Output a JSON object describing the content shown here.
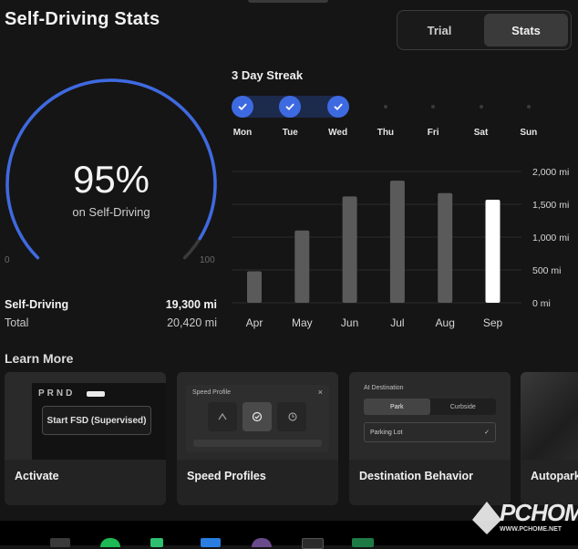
{
  "header": {
    "title": "Self-Driving Stats"
  },
  "tabs": [
    {
      "label": "Trial",
      "active": false
    },
    {
      "label": "Stats",
      "active": true
    }
  ],
  "gauge": {
    "percent_label": "95%",
    "value_percent": 95,
    "subtitle": "on Self-Driving",
    "min_label": "0",
    "max_label": "100",
    "arc_color": "#3e6ae1"
  },
  "stats": [
    {
      "label": "Self-Driving",
      "value": "19,300 mi"
    },
    {
      "label": "Total",
      "value": "20,420 mi"
    }
  ],
  "streak": {
    "title": "3 Day Streak",
    "days": [
      {
        "label": "Mon",
        "done": true
      },
      {
        "label": "Tue",
        "done": true
      },
      {
        "label": "Wed",
        "done": true
      },
      {
        "label": "Thu",
        "done": false
      },
      {
        "label": "Fri",
        "done": false
      },
      {
        "label": "Sat",
        "done": false
      },
      {
        "label": "Sun",
        "done": false
      }
    ]
  },
  "chart_data": {
    "type": "bar",
    "categories": [
      "Apr",
      "May",
      "Jun",
      "Jul",
      "Aug",
      "Sep"
    ],
    "values": [
      480,
      1100,
      1620,
      1860,
      1670,
      1570
    ],
    "highlight_index": 5,
    "y_ticks": [
      "0 mi",
      "500 mi",
      "1,000 mi",
      "1,500 mi",
      "2,000 mi"
    ],
    "ylim": [
      0,
      2000
    ],
    "grid": true,
    "bar_color": "#5a5a5a",
    "highlight_color": "#ffffff"
  },
  "learn_more": {
    "title": "Learn More",
    "cards": [
      {
        "label": "Activate",
        "preview": {
          "gear": "PRND",
          "button": "Start FSD (Supervised)"
        }
      },
      {
        "label": "Speed Profiles",
        "preview": {
          "title": "Speed Profile",
          "close": "×"
        }
      },
      {
        "label": "Destination Behavior",
        "preview": {
          "title": "At Destination",
          "opt1": "Park",
          "opt2": "Curbside",
          "field": "Parking Lot",
          "field_check": "✓"
        }
      },
      {
        "label": "Autopark"
      }
    ]
  },
  "watermark": {
    "text": "PCHOME",
    "url": "WWW.PCHOME.NET"
  }
}
